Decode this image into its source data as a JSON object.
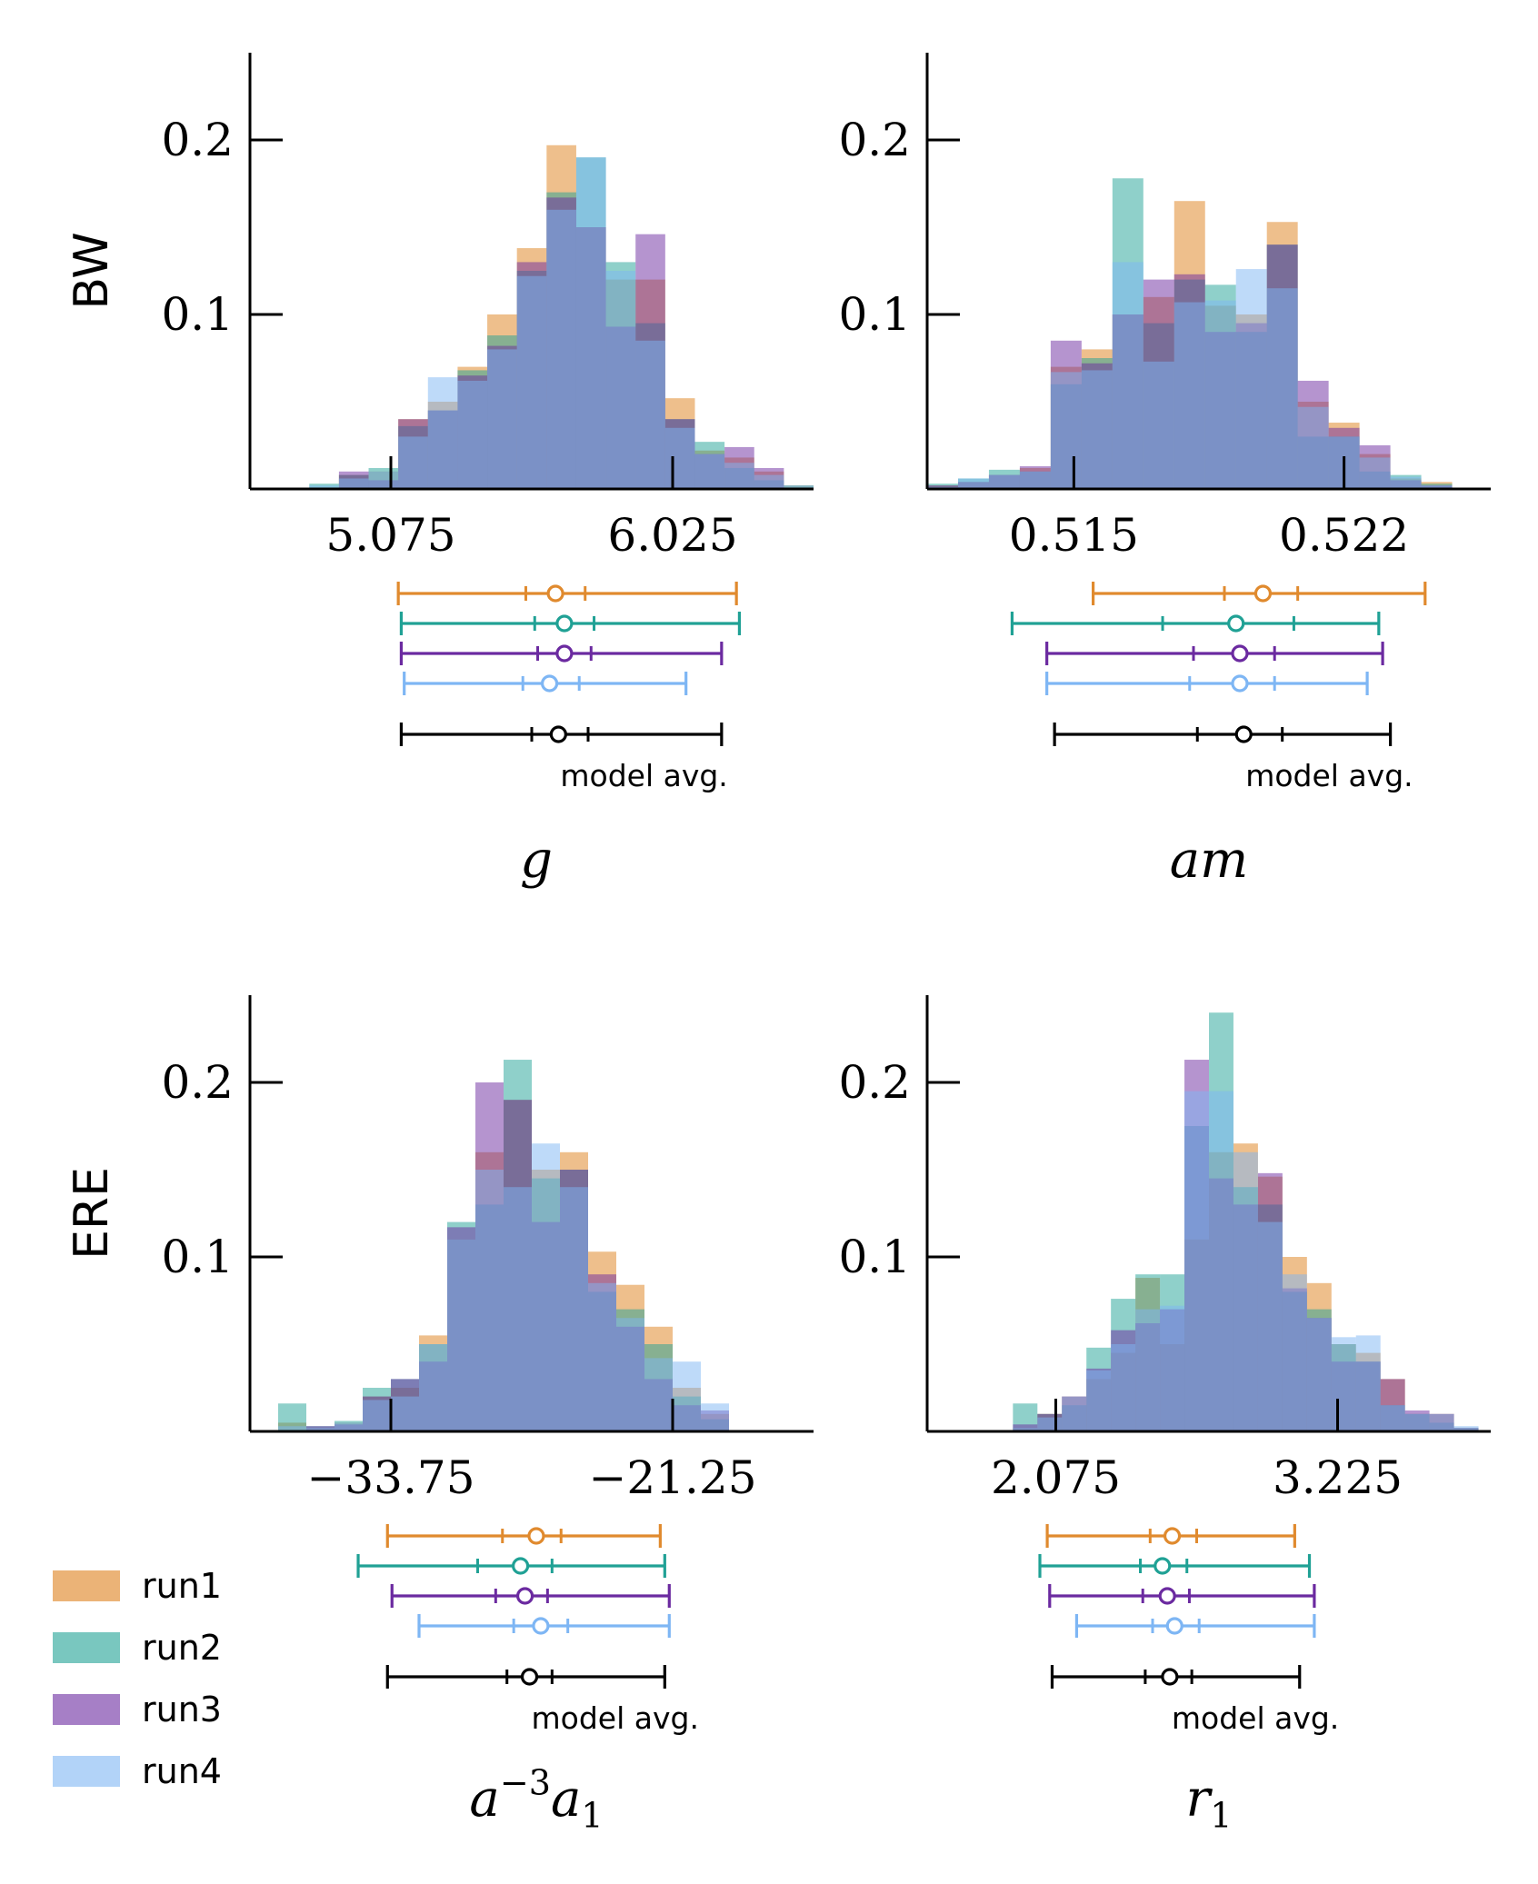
{
  "colors": {
    "run1": "#e08a2e",
    "run2": "#20a195",
    "run3": "#6b2aa0",
    "run4": "#7eb6f4",
    "overlap": "#6a86c8",
    "model_avg": "#000000",
    "axis": "#000000"
  },
  "legend": {
    "placement": "bottom-left",
    "entries": [
      "run1",
      "run2",
      "run3",
      "run4"
    ]
  },
  "chart_data": [
    {
      "type": "bar",
      "row_label": "BW",
      "xlabel": "g",
      "xticks": [
        "5.075",
        "6.025"
      ],
      "xtick_values": [
        5.075,
        6.025
      ],
      "yticks": [
        "0.1",
        "0.2"
      ],
      "ytick_values": [
        0.1,
        0.2
      ],
      "xlim": [
        4.6,
        6.5
      ],
      "ylim": [
        0,
        0.25
      ],
      "bin_edges": [
        4.8,
        4.9,
        5.0,
        5.1,
        5.2,
        5.3,
        5.4,
        5.5,
        5.6,
        5.7,
        5.8,
        5.9,
        6.0,
        6.1,
        6.2,
        6.3,
        6.4,
        6.5
      ],
      "series": [
        {
          "name": "run1",
          "values": [
            0.0,
            0.008,
            0.01,
            0.04,
            0.05,
            0.07,
            0.1,
            0.138,
            0.197,
            0.15,
            0.12,
            0.12,
            0.052,
            0.022,
            0.018,
            0.01,
            0.002
          ]
        },
        {
          "name": "run2",
          "values": [
            0.003,
            0.008,
            0.012,
            0.036,
            0.045,
            0.068,
            0.088,
            0.125,
            0.17,
            0.19,
            0.13,
            0.095,
            0.04,
            0.027,
            0.012,
            0.005,
            0.002
          ]
        },
        {
          "name": "run3",
          "values": [
            0.0,
            0.01,
            0.005,
            0.04,
            0.045,
            0.065,
            0.082,
            0.13,
            0.167,
            0.15,
            0.093,
            0.146,
            0.04,
            0.02,
            0.024,
            0.012,
            0.0
          ]
        },
        {
          "name": "run4",
          "values": [
            0.002,
            0.006,
            0.01,
            0.03,
            0.064,
            0.062,
            0.08,
            0.122,
            0.16,
            0.19,
            0.125,
            0.085,
            0.035,
            0.02,
            0.015,
            0.008,
            0.002
          ]
        }
      ],
      "intervals": [
        {
          "name": "run1",
          "low": 5.1,
          "q1": 5.53,
          "center": 5.63,
          "q3": 5.73,
          "high": 6.24
        },
        {
          "name": "run2",
          "low": 5.11,
          "q1": 5.56,
          "center": 5.66,
          "q3": 5.76,
          "high": 6.25
        },
        {
          "name": "run3",
          "low": 5.11,
          "q1": 5.57,
          "center": 5.66,
          "q3": 5.75,
          "high": 6.19
        },
        {
          "name": "run4",
          "low": 5.12,
          "q1": 5.52,
          "center": 5.61,
          "q3": 5.71,
          "high": 6.07
        },
        {
          "name": "model avg.",
          "low": 5.11,
          "q1": 5.55,
          "center": 5.64,
          "q3": 5.74,
          "high": 6.19
        }
      ],
      "model_avg_label": "model avg."
    },
    {
      "type": "bar",
      "row_label": "",
      "xlabel": "am",
      "xticks": [
        "0.515",
        "0.522"
      ],
      "xtick_values": [
        0.515,
        0.522
      ],
      "yticks": [
        "0.1",
        "0.2"
      ],
      "ytick_values": [
        0.1,
        0.2
      ],
      "xlim": [
        0.5112,
        0.5258
      ],
      "ylim": [
        0,
        0.25
      ],
      "bin_edges": [
        0.5112,
        0.512,
        0.5128,
        0.5136,
        0.5144,
        0.5152,
        0.516,
        0.5168,
        0.5176,
        0.5184,
        0.5192,
        0.52,
        0.5208,
        0.5216,
        0.5224,
        0.5232,
        0.524,
        0.5248,
        0.5256
      ],
      "series": [
        {
          "name": "run1",
          "values": [
            0.002,
            0.004,
            0.008,
            0.012,
            0.07,
            0.08,
            0.1,
            0.11,
            0.165,
            0.105,
            0.1,
            0.153,
            0.05,
            0.038,
            0.02,
            0.006,
            0.004,
            0.0
          ]
        },
        {
          "name": "run2",
          "values": [
            0.003,
            0.006,
            0.011,
            0.01,
            0.06,
            0.075,
            0.178,
            0.095,
            0.12,
            0.117,
            0.09,
            0.14,
            0.03,
            0.03,
            0.01,
            0.008,
            0.003,
            0.0
          ]
        },
        {
          "name": "run3",
          "values": [
            0.002,
            0.004,
            0.008,
            0.013,
            0.085,
            0.072,
            0.1,
            0.12,
            0.123,
            0.09,
            0.095,
            0.14,
            0.062,
            0.035,
            0.025,
            0.005,
            0.002,
            0.0
          ]
        },
        {
          "name": "run4",
          "values": [
            0.001,
            0.006,
            0.008,
            0.01,
            0.067,
            0.068,
            0.13,
            0.073,
            0.107,
            0.108,
            0.126,
            0.115,
            0.047,
            0.03,
            0.018,
            0.007,
            0.002,
            0.0
          ]
        }
      ],
      "intervals": [
        {
          "name": "run1",
          "low": 0.5155,
          "q1": 0.5189,
          "center": 0.5199,
          "q3": 0.5208,
          "high": 0.5241
        },
        {
          "name": "run2",
          "low": 0.5134,
          "q1": 0.5173,
          "center": 0.5192,
          "q3": 0.5207,
          "high": 0.5229
        },
        {
          "name": "run3",
          "low": 0.5143,
          "q1": 0.5181,
          "center": 0.5193,
          "q3": 0.5202,
          "high": 0.523
        },
        {
          "name": "run4",
          "low": 0.5143,
          "q1": 0.518,
          "center": 0.5193,
          "q3": 0.5202,
          "high": 0.5226
        },
        {
          "name": "model avg.",
          "low": 0.5145,
          "q1": 0.5182,
          "center": 0.5194,
          "q3": 0.5204,
          "high": 0.5232
        }
      ],
      "model_avg_label": "model avg."
    },
    {
      "type": "bar",
      "row_label": "ERE",
      "xlabel": "a^{-3}a_1",
      "xticks": [
        "−33.75",
        "−21.25"
      ],
      "xtick_values": [
        -33.75,
        -21.25
      ],
      "yticks": [
        "0.1",
        "0.2"
      ],
      "ytick_values": [
        0.1,
        0.2
      ],
      "xlim": [
        -40.0,
        -15.0
      ],
      "ylim": [
        0,
        0.25
      ],
      "bin_edges": [
        -38.75,
        -37.5,
        -36.25,
        -35.0,
        -33.75,
        -32.5,
        -31.25,
        -30.0,
        -28.75,
        -27.5,
        -26.25,
        -25.0,
        -23.75,
        -22.5,
        -21.25,
        -20.0,
        -18.75,
        -17.5
      ],
      "series": [
        {
          "name": "run1",
          "values": [
            0.005,
            0.002,
            0.005,
            0.02,
            0.025,
            0.055,
            0.11,
            0.16,
            0.19,
            0.15,
            0.16,
            0.103,
            0.084,
            0.06,
            0.025,
            0.01,
            0.0
          ]
        },
        {
          "name": "run2",
          "values": [
            0.016,
            0.003,
            0.006,
            0.025,
            0.03,
            0.05,
            0.12,
            0.13,
            0.213,
            0.145,
            0.15,
            0.08,
            0.07,
            0.05,
            0.02,
            0.007,
            0.0
          ]
        },
        {
          "name": "run3",
          "values": [
            0.0,
            0.003,
            0.004,
            0.02,
            0.03,
            0.04,
            0.117,
            0.2,
            0.19,
            0.12,
            0.15,
            0.09,
            0.06,
            0.03,
            0.015,
            0.012,
            0.0
          ]
        },
        {
          "name": "run4",
          "values": [
            0.003,
            0.002,
            0.005,
            0.018,
            0.02,
            0.05,
            0.11,
            0.15,
            0.14,
            0.165,
            0.14,
            0.085,
            0.065,
            0.042,
            0.04,
            0.016,
            0.0
          ]
        }
      ],
      "intervals": [
        {
          "name": "run1",
          "low": -33.9,
          "q1": -28.8,
          "center": -27.3,
          "q3": -26.2,
          "high": -21.8
        },
        {
          "name": "run2",
          "low": -35.2,
          "q1": -29.9,
          "center": -28.0,
          "q3": -26.6,
          "high": -21.6
        },
        {
          "name": "run3",
          "low": -33.7,
          "q1": -29.1,
          "center": -27.8,
          "q3": -26.8,
          "high": -21.4
        },
        {
          "name": "run4",
          "low": -32.5,
          "q1": -28.3,
          "center": -27.1,
          "q3": -25.9,
          "high": -21.4
        },
        {
          "name": "model avg.",
          "low": -33.9,
          "q1": -28.6,
          "center": -27.6,
          "q3": -26.6,
          "high": -21.6
        }
      ],
      "model_avg_label": "model avg."
    },
    {
      "type": "bar",
      "row_label": "",
      "xlabel": "r_1",
      "xticks": [
        "2.075",
        "3.225"
      ],
      "xtick_values": [
        2.075,
        3.225
      ],
      "yticks": [
        "0.1",
        "0.2"
      ],
      "ytick_values": [
        0.1,
        0.2
      ],
      "xlim": [
        1.55,
        3.85
      ],
      "ylim": [
        0,
        0.25
      ],
      "bin_edges": [
        1.6,
        1.7,
        1.8,
        1.9,
        2.0,
        2.1,
        2.2,
        2.3,
        2.4,
        2.5,
        2.6,
        2.7,
        2.8,
        2.9,
        3.0,
        3.1,
        3.2,
        3.3,
        3.4,
        3.5,
        3.6,
        3.7,
        3.8
      ],
      "series": [
        {
          "name": "run1",
          "values": [
            0.0,
            0.0,
            0.0,
            0.002,
            0.01,
            0.02,
            0.03,
            0.045,
            0.088,
            0.05,
            0.11,
            0.16,
            0.165,
            0.146,
            0.1,
            0.085,
            0.05,
            0.045,
            0.03,
            0.01,
            0.01,
            0.002,
            0.0
          ]
        },
        {
          "name": "run2",
          "values": [
            0.0,
            0.0,
            0.0,
            0.016,
            0.01,
            0.015,
            0.048,
            0.076,
            0.09,
            0.09,
            0.175,
            0.24,
            0.14,
            0.13,
            0.08,
            0.07,
            0.05,
            0.04,
            0.015,
            0.01,
            0.005,
            0.002,
            0.0
          ]
        },
        {
          "name": "run3",
          "values": [
            0.0,
            0.0,
            0.0,
            0.004,
            0.01,
            0.02,
            0.036,
            0.058,
            0.062,
            0.07,
            0.213,
            0.145,
            0.13,
            0.148,
            0.082,
            0.065,
            0.04,
            0.04,
            0.03,
            0.012,
            0.01,
            0.002,
            0.0
          ]
        },
        {
          "name": "run4",
          "values": [
            0.0,
            0.0,
            0.0,
            0.002,
            0.008,
            0.02,
            0.035,
            0.05,
            0.07,
            0.072,
            0.195,
            0.195,
            0.16,
            0.12,
            0.09,
            0.065,
            0.054,
            0.055,
            0.015,
            0.01,
            0.01,
            0.003,
            0.0
          ]
        }
      ],
      "intervals": [
        {
          "name": "run1",
          "low": 2.04,
          "q1": 2.46,
          "center": 2.55,
          "q3": 2.65,
          "high": 3.05
        },
        {
          "name": "run2",
          "low": 2.01,
          "q1": 2.42,
          "center": 2.51,
          "q3": 2.61,
          "high": 3.11
        },
        {
          "name": "run3",
          "low": 2.05,
          "q1": 2.43,
          "center": 2.53,
          "q3": 2.62,
          "high": 3.13
        },
        {
          "name": "run4",
          "low": 2.16,
          "q1": 2.47,
          "center": 2.56,
          "q3": 2.66,
          "high": 3.13
        },
        {
          "name": "model avg.",
          "low": 2.06,
          "q1": 2.44,
          "center": 2.54,
          "q3": 2.63,
          "high": 3.07
        }
      ],
      "model_avg_label": "model avg."
    }
  ]
}
